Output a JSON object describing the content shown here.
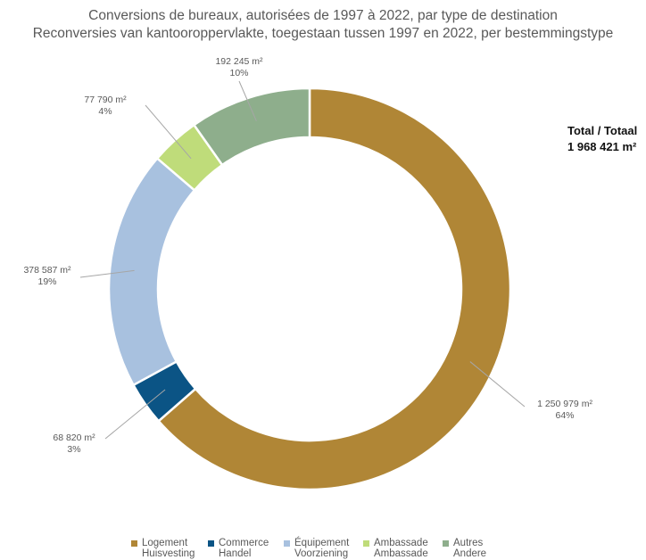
{
  "chart_data": {
    "type": "pie",
    "variant": "donut",
    "title": "Conversions de bureaux, autorisées de 1997 à 2022, par type de destination",
    "subtitle": "Reconversies van kantooroppervlakte, toegestaan tussen 1997 en 2022, per bestemmingstype",
    "total_label": "Total / Totaal",
    "total_value": "1 968 421 m²",
    "legend_position": "bottom",
    "slices": [
      {
        "name": "Logement",
        "name_nl": "Huisvesting",
        "value": 1250979,
        "value_label": "1 250 979 m²",
        "pct": "64%",
        "color": "#b08636"
      },
      {
        "name": "Commerce",
        "name_nl": "Handel",
        "value": 68820,
        "value_label": "68 820 m²",
        "pct": "3%",
        "color": "#0b5485"
      },
      {
        "name": "Équipement",
        "name_nl": "Voorziening",
        "value": 378587,
        "value_label": "378 587 m²",
        "pct": "19%",
        "color": "#a8c1df"
      },
      {
        "name": "Ambassade",
        "name_nl": "Ambassade",
        "value": 77790,
        "value_label": "77 790 m²",
        "pct": "4%",
        "color": "#bfdc7a"
      },
      {
        "name": "Autres",
        "name_nl": "Andere",
        "value": 192245,
        "value_label": "192 245 m²",
        "pct": "10%",
        "color": "#8eae8c"
      }
    ]
  }
}
